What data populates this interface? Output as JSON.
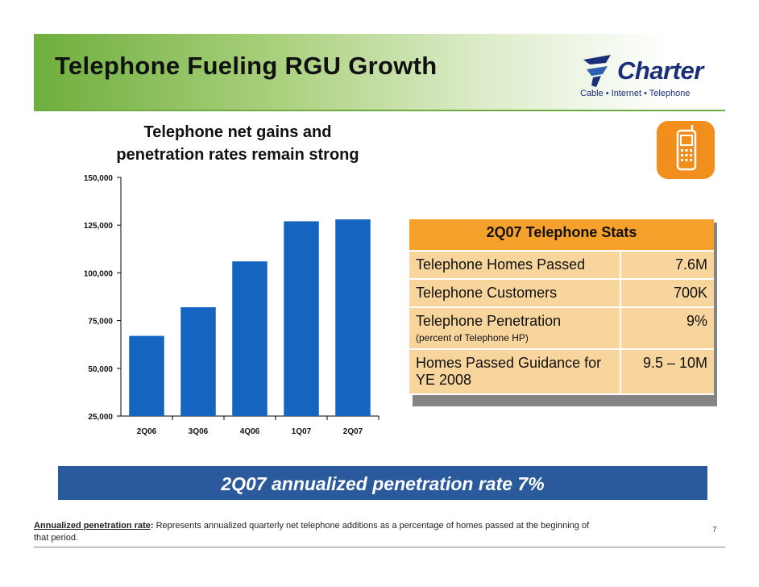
{
  "slide": {
    "title": "Telephone Fueling RGU Growth",
    "subtitle_line1": "Telephone net gains and",
    "subtitle_line2": "penetration rates remain strong",
    "page_number": "7"
  },
  "logo": {
    "name": "Charter",
    "tagline": "Cable • Internet • Telephone"
  },
  "colors": {
    "bar": "#1565c0",
    "header_green": "#6fae3e",
    "stats_header": "#f5a12b",
    "stats_cell": "#f7d59c",
    "banner": "#2b5a9c",
    "logo_blue": "#1a2f7a",
    "phone_icon": "#f28e1c"
  },
  "stats": {
    "header": "2Q07 Telephone Stats",
    "rows": [
      {
        "label": "Telephone Homes Passed",
        "note": "",
        "value": "7.6M"
      },
      {
        "label": "Telephone Customers",
        "note": "",
        "value": "700K"
      },
      {
        "label": "Telephone Penetration",
        "note": "(percent of Telephone HP)",
        "value": "9%"
      },
      {
        "label": "Homes Passed Guidance for YE 2008",
        "note": "",
        "value": "9.5 – 10M"
      }
    ]
  },
  "banner": {
    "text": "2Q07 annualized penetration rate 7%"
  },
  "footnote": {
    "term": "Annualized penetration rate",
    "definition": " Represents annualized quarterly net telephone additions as a percentage of homes passed at the beginning of that period."
  },
  "icons": {
    "phone": "mobile-phone-icon"
  },
  "chart_data": {
    "type": "bar",
    "title": "Telephone net gains and penetration rates remain strong",
    "categories": [
      "2Q06",
      "3Q06",
      "4Q06",
      "1Q07",
      "2Q07"
    ],
    "values": [
      67000,
      82000,
      106000,
      127000,
      128000
    ],
    "ylim": [
      25000,
      150000
    ],
    "yticks": [
      25000,
      50000,
      75000,
      100000,
      125000,
      150000
    ],
    "ytick_labels": [
      "25,000",
      "50,000",
      "75,000",
      "100,000",
      "125,000",
      "150,000"
    ],
    "xlabel": "",
    "ylabel": "",
    "grid": false
  }
}
